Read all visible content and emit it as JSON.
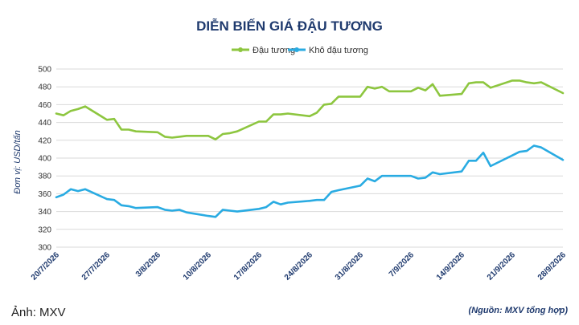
{
  "chart_data": {
    "type": "line",
    "title": "DIỄN BIẾN GIÁ ĐẬU TƯƠNG",
    "ylabel": "Đơn vị: USD/tấn",
    "xlabel": "",
    "ylim": [
      300,
      500
    ],
    "yticks": [
      300,
      320,
      340,
      360,
      380,
      400,
      420,
      440,
      460,
      480,
      500
    ],
    "x_ticks": [
      "20/7/2026",
      "27/7/2026",
      "3/8/2026",
      "10/8/2026",
      "17/8/2026",
      "24/8/2026",
      "31/8/2026",
      "7/9/2026",
      "14/9/2026",
      "21/9/2026",
      "28/9/2026"
    ],
    "grid": true,
    "legend_position": "top",
    "series": [
      {
        "name": "Đậu tương",
        "color": "#8dc63f",
        "x": [
          "2026-07-20",
          "2026-07-21",
          "2026-07-22",
          "2026-07-23",
          "2026-07-24",
          "2026-07-27",
          "2026-07-28",
          "2026-07-29",
          "2026-07-30",
          "2026-07-31",
          "2026-08-03",
          "2026-08-04",
          "2026-08-05",
          "2026-08-06",
          "2026-08-07",
          "2026-08-10",
          "2026-08-11",
          "2026-08-12",
          "2026-08-13",
          "2026-08-14",
          "2026-08-17",
          "2026-08-18",
          "2026-08-19",
          "2026-08-20",
          "2026-08-21",
          "2026-08-24",
          "2026-08-25",
          "2026-08-26",
          "2026-08-27",
          "2026-08-28",
          "2026-08-31",
          "2026-09-01",
          "2026-09-02",
          "2026-09-03",
          "2026-09-04",
          "2026-09-07",
          "2026-09-08",
          "2026-09-09",
          "2026-09-10",
          "2026-09-11",
          "2026-09-14",
          "2026-09-15",
          "2026-09-16",
          "2026-09-17",
          "2026-09-18",
          "2026-09-21",
          "2026-09-22",
          "2026-09-23",
          "2026-09-24",
          "2026-09-25",
          "2026-09-28"
        ],
        "values": [
          450,
          448,
          453,
          455,
          458,
          443,
          444,
          432,
          432,
          430,
          429,
          424,
          423,
          424,
          425,
          425,
          421,
          427,
          428,
          430,
          441,
          441,
          449,
          449,
          450,
          447,
          451,
          460,
          461,
          469,
          469,
          480,
          478,
          480,
          475,
          475,
          479,
          476,
          483,
          470,
          472,
          484,
          485,
          485,
          479,
          487,
          487,
          485,
          484,
          485,
          473
        ]
      },
      {
        "name": "Khô đậu tương",
        "color": "#29abe2",
        "x": [
          "2026-07-20",
          "2026-07-21",
          "2026-07-22",
          "2026-07-23",
          "2026-07-24",
          "2026-07-27",
          "2026-07-28",
          "2026-07-29",
          "2026-07-30",
          "2026-07-31",
          "2026-08-03",
          "2026-08-04",
          "2026-08-05",
          "2026-08-06",
          "2026-08-07",
          "2026-08-10",
          "2026-08-11",
          "2026-08-12",
          "2026-08-13",
          "2026-08-14",
          "2026-08-17",
          "2026-08-18",
          "2026-08-19",
          "2026-08-20",
          "2026-08-21",
          "2026-08-24",
          "2026-08-25",
          "2026-08-26",
          "2026-08-27",
          "2026-08-28",
          "2026-08-31",
          "2026-09-01",
          "2026-09-02",
          "2026-09-03",
          "2026-09-04",
          "2026-09-07",
          "2026-09-08",
          "2026-09-09",
          "2026-09-10",
          "2026-09-11",
          "2026-09-14",
          "2026-09-15",
          "2026-09-16",
          "2026-09-17",
          "2026-09-18",
          "2026-09-21",
          "2026-09-22",
          "2026-09-23",
          "2026-09-24",
          "2026-09-25",
          "2026-09-28"
        ],
        "values": [
          356,
          359,
          365,
          363,
          365,
          354,
          353,
          347,
          346,
          344,
          345,
          342,
          341,
          342,
          339,
          335,
          334,
          342,
          341,
          340,
          343,
          345,
          351,
          348,
          350,
          352,
          353,
          353,
          362,
          364,
          369,
          377,
          374,
          380,
          380,
          380,
          377,
          378,
          384,
          382,
          385,
          397,
          397,
          406,
          391,
          403,
          407,
          408,
          414,
          412,
          398
        ]
      }
    ]
  },
  "footer": {
    "photo_credit": "Ảnh: MXV",
    "source": "(Nguồn: MXV tổng hợp)"
  }
}
